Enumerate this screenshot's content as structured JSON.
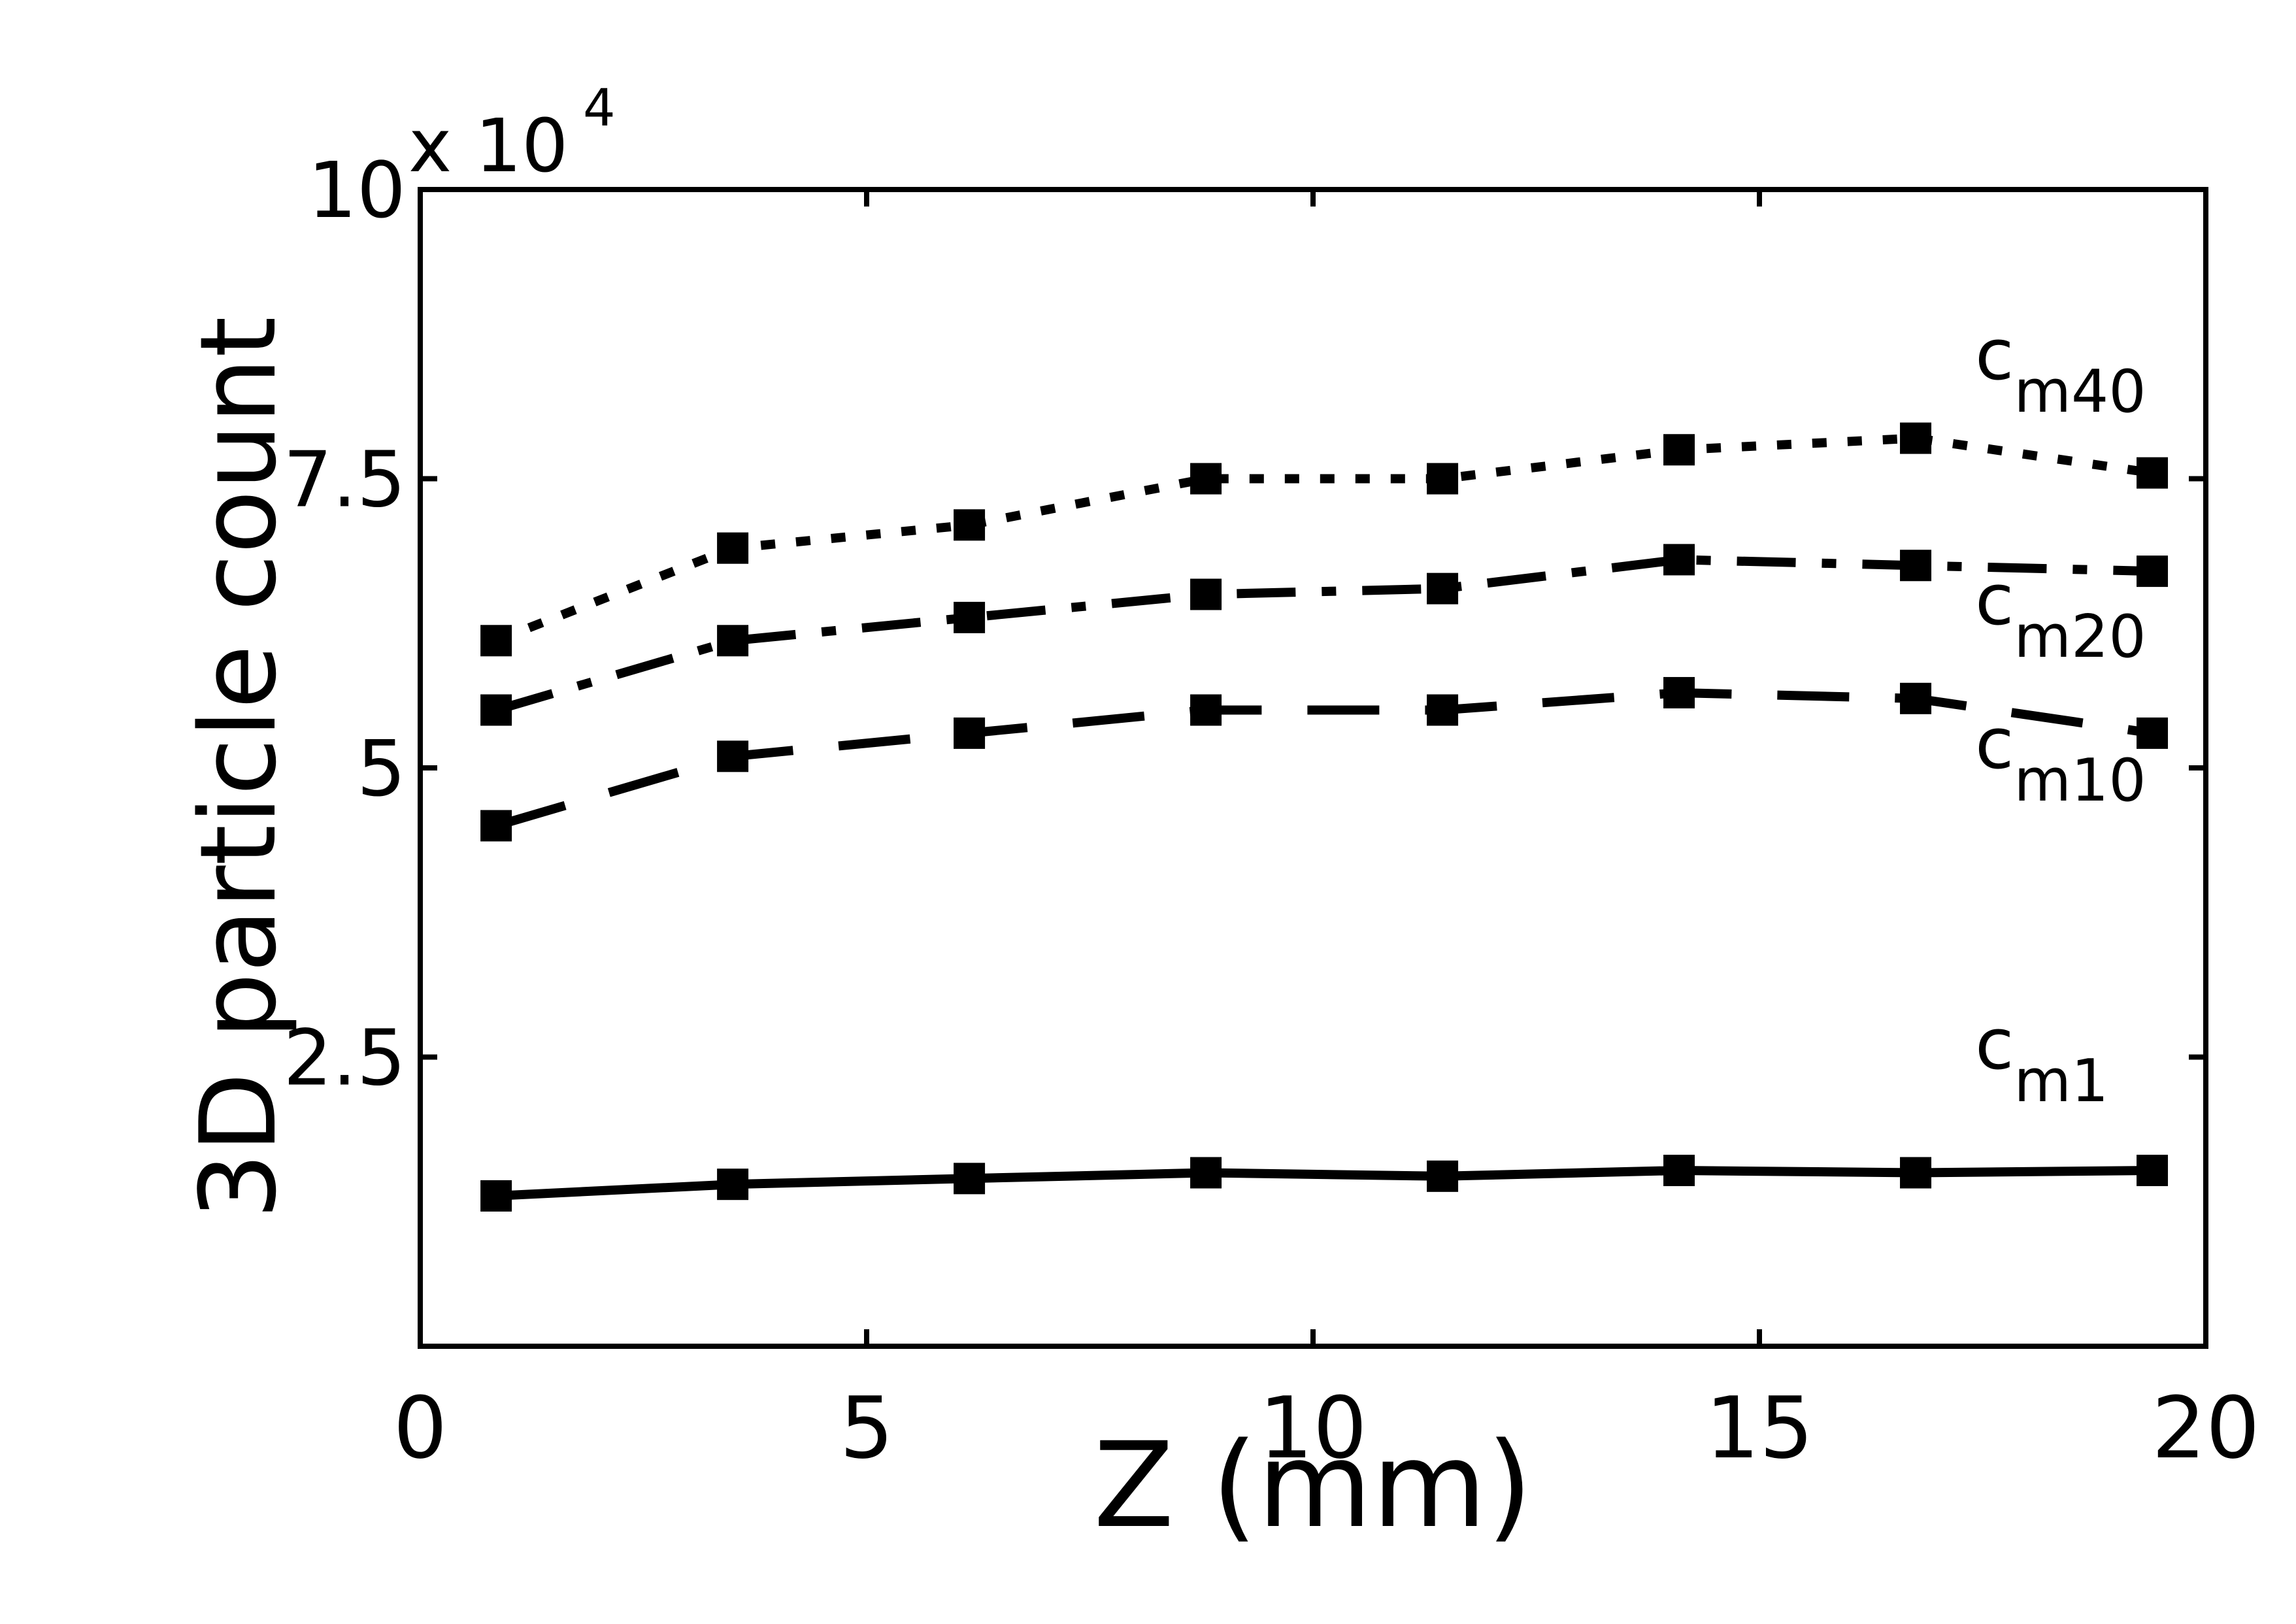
{
  "chart_data": {
    "type": "line",
    "title": "",
    "xlabel": "Z (mm)",
    "ylabel": "3D particle count",
    "y_multiplier_base": "x 10",
    "y_multiplier_exponent": "4",
    "xlim": [
      0,
      20
    ],
    "ylim": [
      0,
      100000
    ],
    "x_ticks": [
      0,
      5,
      10,
      15,
      20
    ],
    "x_tick_labels": [
      "0",
      "5",
      "10",
      "15",
      "20"
    ],
    "y_ticks": [
      25000,
      50000,
      75000,
      100000
    ],
    "y_tick_labels": [
      "2.5",
      "5",
      "7.5",
      "10"
    ],
    "grid": false,
    "legend": "inline labels at right end of each series",
    "marker": "square",
    "color": "#000000",
    "x": [
      0.85,
      3.5,
      6.15,
      8.8,
      11.45,
      14.1,
      16.75,
      19.4
    ],
    "series": [
      {
        "label_base": "c",
        "label_sub": "m40",
        "style": "dotted",
        "values": [
          61000,
          69000,
          71000,
          75000,
          75000,
          77500,
          78500,
          75500
        ]
      },
      {
        "label_base": "c",
        "label_sub": "m20",
        "style": "dashdot",
        "values": [
          55000,
          61000,
          63000,
          65000,
          65500,
          68000,
          67500,
          67000
        ]
      },
      {
        "label_base": "c",
        "label_sub": "m10",
        "style": "dashed",
        "values": [
          45000,
          51000,
          53000,
          55000,
          55000,
          56500,
          56000,
          53000
        ]
      },
      {
        "label_base": "c",
        "label_sub": "m1",
        "style": "solid",
        "values": [
          13000,
          14000,
          14500,
          15000,
          14700,
          15200,
          15000,
          15200
        ]
      }
    ]
  }
}
